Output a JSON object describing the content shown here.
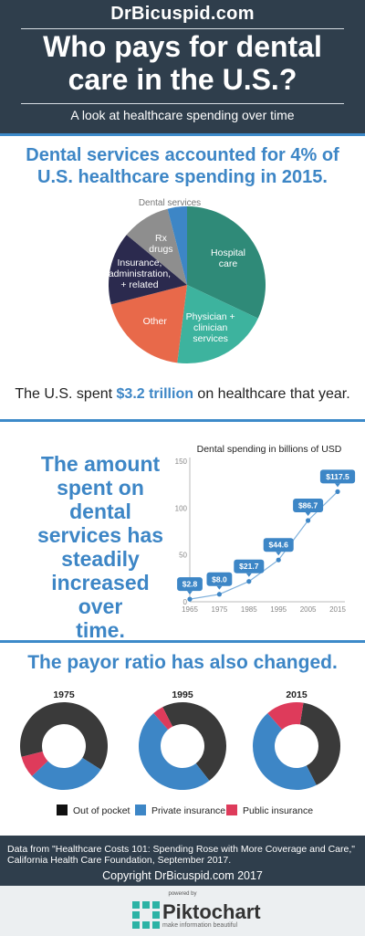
{
  "header": {
    "brand": "DrBicuspid.com",
    "headline_line1": "Who pays for dental",
    "headline_line2": "care in the U.S.?",
    "subtitle": "A look at healthcare spending over time"
  },
  "section_share": {
    "title_line1": "Dental services accounted for 4% of",
    "title_line2": "U.S. healthcare spending in 2015.",
    "spent_prefix": "The U.S. spent ",
    "spent_amount": "$3.2 trillion",
    "spent_suffix": " on healthcare that year."
  },
  "section_trend": {
    "text_line1": "The amount",
    "text_line2": "spent on dental",
    "text_line3": "services has",
    "text_line4": "steadily",
    "text_line5": "increased over",
    "text_line6": "time."
  },
  "section_payor": {
    "title": "The payor ratio has also changed."
  },
  "colors": {
    "navy": "#2f3e4c",
    "accent_blue": "#3d86c6",
    "hospital": "#2f8a78",
    "physician": "#3db39e",
    "other": "#e8694a",
    "insurance_admin": "#2b2a4e",
    "rx": "#8e8e8e",
    "dental": "#3d86c6",
    "out_of_pocket": "#3a3a3a",
    "private_insurance": "#3d86c6",
    "public_insurance": "#de3b5b"
  },
  "chart_data": [
    {
      "type": "pie",
      "title": "",
      "slices": [
        {
          "label": "Hospital care",
          "label_lines": [
            "Hospital",
            "care"
          ],
          "value": 32,
          "color": "#2f8a78"
        },
        {
          "label": "Physician + clinician services",
          "label_lines": [
            "Physician +",
            "clinician",
            "services"
          ],
          "value": 20,
          "color": "#3db39e"
        },
        {
          "label": "Other",
          "label_lines": [
            "Other"
          ],
          "value": 19,
          "color": "#e8694a"
        },
        {
          "label": "Insurance, administration, + related",
          "label_lines": [
            "Insurance,",
            "administration,",
            "+ related"
          ],
          "value": 15,
          "color": "#2b2a4e"
        },
        {
          "label": "Rx drugs",
          "label_lines": [
            "Rx",
            "drugs"
          ],
          "value": 10,
          "color": "#8e8e8e"
        },
        {
          "label": "Dental services",
          "label_lines": [
            "Dental services"
          ],
          "value": 4,
          "color": "#3d86c6"
        }
      ]
    },
    {
      "type": "line",
      "title": "Dental spending in billions of USD",
      "x": [
        1965,
        1975,
        1985,
        1995,
        2005,
        2015
      ],
      "x_labels": [
        "1965",
        "1975",
        "1985",
        "1995",
        "2005",
        "2015"
      ],
      "values": [
        2.8,
        8.0,
        21.7,
        44.6,
        86.7,
        117.5
      ],
      "value_labels": [
        "$2.8",
        "$8.0",
        "$21.7",
        "$44.6",
        "$86.7",
        "$117.5"
      ],
      "ylim": [
        0,
        150
      ],
      "y_ticks": [
        0,
        50,
        100,
        150
      ],
      "y_tick_labels": [
        "0",
        "50",
        "100",
        "150"
      ],
      "grid": false
    },
    {
      "type": "pie",
      "donut": true,
      "title": "1975",
      "slices": [
        {
          "label": "Out of pocket",
          "value": 63,
          "color": "#3a3a3a"
        },
        {
          "label": "Private insurance",
          "value": 29,
          "color": "#3d86c6"
        },
        {
          "label": "Public insurance",
          "value": 8,
          "color": "#de3b5b"
        }
      ]
    },
    {
      "type": "pie",
      "donut": true,
      "title": "1995",
      "slices": [
        {
          "label": "Out of pocket",
          "value": 47,
          "color": "#3a3a3a"
        },
        {
          "label": "Private insurance",
          "value": 49,
          "color": "#3d86c6"
        },
        {
          "label": "Public insurance",
          "value": 4,
          "color": "#de3b5b"
        }
      ]
    },
    {
      "type": "pie",
      "donut": true,
      "title": "2015",
      "slices": [
        {
          "label": "Out of pocket",
          "value": 40,
          "color": "#3a3a3a"
        },
        {
          "label": "Private insurance",
          "value": 46,
          "color": "#3d86c6"
        },
        {
          "label": "Public insurance",
          "value": 14,
          "color": "#de3b5b"
        }
      ]
    }
  ],
  "legend": {
    "out_of_pocket": "Out of pocket",
    "private_insurance": "Private insurance",
    "public_insurance": "Public insurance"
  },
  "footer": {
    "source_line1": "Data from \"Healthcare Costs 101: Spending Rose with More Coverage and Care,\"",
    "source_line2": "California Health Care Foundation, September 2017.",
    "copyright": "Copyright DrBicuspid.com 2017",
    "powered_by": "powered by",
    "piktochart": "Piktochart",
    "tagline": "make information beautiful"
  }
}
